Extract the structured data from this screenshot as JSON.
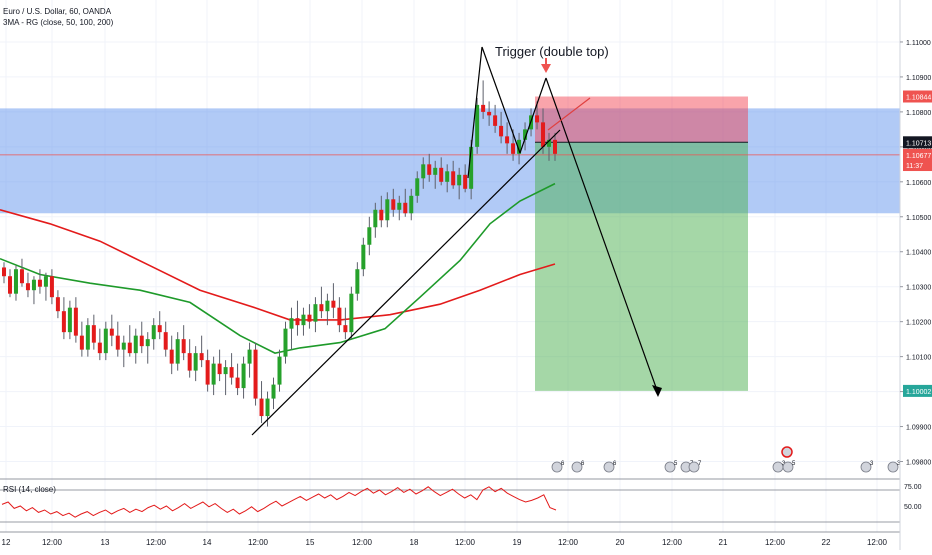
{
  "chart_data": {
    "type": "candlestick",
    "title": "Euro / U.S. Dollar, 60, OANDA",
    "indicator": "3MA - RG (close, 50, 100, 200)",
    "ylim": [
      1.0975,
      1.1112
    ],
    "y_ticks": [
      "1.11000",
      "1.10900",
      "1.10800",
      "1.10700",
      "1.10600",
      "1.10500",
      "1.10400",
      "1.10300",
      "1.10200",
      "1.10100",
      "1.10000",
      "1.09900",
      "1.09800"
    ],
    "x_ticks": [
      "12",
      "12:00",
      "13",
      "12:00",
      "14",
      "12:00",
      "15",
      "12:00",
      "18",
      "12:00",
      "19",
      "12:00",
      "20",
      "12:00",
      "21",
      "12:00",
      "22",
      "12:00"
    ],
    "price_labels": [
      {
        "label": "1.10844",
        "value": 1.10844,
        "color": "#ef5350"
      },
      {
        "label": "1.10713",
        "value": 1.10713,
        "color": "#131722"
      },
      {
        "label": "1.10677",
        "value": 1.10677,
        "color": "#ef5350"
      },
      {
        "label": "11:37",
        "value": 1.10648,
        "color": "#ef5350"
      },
      {
        "label": "1.10002",
        "value": 1.10002,
        "color": "#26a69a"
      }
    ],
    "zone": {
      "low": 1.1051,
      "high": 1.1081
    },
    "position": {
      "entry": 1.10713,
      "stop": 1.10844,
      "target": 1.10002
    },
    "annotation": "Trigger (double top)",
    "ma_green": [
      [
        0,
        1.1038
      ],
      [
        40,
        1.10335
      ],
      [
        90,
        1.1031
      ],
      [
        140,
        1.1029
      ],
      [
        190,
        1.10255
      ],
      [
        240,
        1.1016
      ],
      [
        275,
        1.1011
      ],
      [
        300,
        1.10125
      ],
      [
        340,
        1.1014
      ],
      [
        385,
        1.1018
      ],
      [
        420,
        1.1027
      ],
      [
        460,
        1.10375
      ],
      [
        490,
        1.1048
      ],
      [
        520,
        1.10545
      ],
      [
        555,
        1.10595
      ]
    ],
    "ma_red": [
      [
        0,
        1.1052
      ],
      [
        50,
        1.1048
      ],
      [
        100,
        1.1043
      ],
      [
        150,
        1.1036
      ],
      [
        200,
        1.1029
      ],
      [
        255,
        1.1024
      ],
      [
        290,
        1.10205
      ],
      [
        340,
        1.10205
      ],
      [
        390,
        1.1022
      ],
      [
        440,
        1.1025
      ],
      [
        480,
        1.1029
      ],
      [
        520,
        1.10335
      ],
      [
        555,
        1.10365
      ]
    ],
    "series": [
      {
        "name": "EURUSD",
        "values": [
          [
            1.10355,
            1.1037,
            1.1031,
            1.1033
          ],
          [
            1.1033,
            1.1035,
            1.1027,
            1.1028
          ],
          [
            1.1028,
            1.1036,
            1.1026,
            1.1035
          ],
          [
            1.1035,
            1.1038,
            1.103,
            1.1031
          ],
          [
            1.1031,
            1.1034,
            1.1027,
            1.1029
          ],
          [
            1.1029,
            1.1033,
            1.1025,
            1.1032
          ],
          [
            1.1032,
            1.1035,
            1.1028,
            1.103
          ],
          [
            1.103,
            1.1034,
            1.1026,
            1.1033
          ],
          [
            1.1033,
            1.1035,
            1.1025,
            1.1027
          ],
          [
            1.1027,
            1.1029,
            1.1021,
            1.1023
          ],
          [
            1.1023,
            1.1027,
            1.1015,
            1.1017
          ],
          [
            1.1017,
            1.1026,
            1.1015,
            1.1024
          ],
          [
            1.1024,
            1.1027,
            1.1014,
            1.1016
          ],
          [
            1.1016,
            1.102,
            1.101,
            1.1012
          ],
          [
            1.1012,
            1.1021,
            1.101,
            1.1019
          ],
          [
            1.1019,
            1.1022,
            1.1012,
            1.1014
          ],
          [
            1.1014,
            1.1018,
            1.1009,
            1.1011
          ],
          [
            1.1011,
            1.102,
            1.1009,
            1.1018
          ],
          [
            1.1018,
            1.1022,
            1.1013,
            1.1016
          ],
          [
            1.1016,
            1.102,
            1.101,
            1.1012
          ],
          [
            1.1012,
            1.1016,
            1.1007,
            1.1014
          ],
          [
            1.1014,
            1.1019,
            1.101,
            1.1011
          ],
          [
            1.1011,
            1.1018,
            1.1008,
            1.1016
          ],
          [
            1.1016,
            1.102,
            1.1011,
            1.1013
          ],
          [
            1.1013,
            1.1017,
            1.1008,
            1.1015
          ],
          [
            1.1015,
            1.1021,
            1.1012,
            1.1019
          ],
          [
            1.1019,
            1.1023,
            1.1015,
            1.1017
          ],
          [
            1.1017,
            1.102,
            1.101,
            1.1012
          ],
          [
            1.1012,
            1.1016,
            1.1005,
            1.1008
          ],
          [
            1.1008,
            1.1017,
            1.1006,
            1.1015
          ],
          [
            1.1015,
            1.1019,
            1.1009,
            1.1011
          ],
          [
            1.1011,
            1.1015,
            1.1004,
            1.1006
          ],
          [
            1.1006,
            1.1013,
            1.1003,
            1.1011
          ],
          [
            1.1011,
            1.1016,
            1.1007,
            1.1009
          ],
          [
            1.1009,
            1.1012,
            1.1,
            1.1002
          ],
          [
            1.1002,
            1.101,
            1.0999,
            1.1008
          ],
          [
            1.1008,
            1.1012,
            1.1003,
            1.1005
          ],
          [
            1.1005,
            1.1009,
            1.0999,
            1.1007
          ],
          [
            1.1007,
            1.1011,
            1.1002,
            1.1004
          ],
          [
            1.1004,
            1.1008,
            1.0999,
            1.1001
          ],
          [
            1.1001,
            1.101,
            1.0998,
            1.1008
          ],
          [
            1.1008,
            1.1014,
            1.1004,
            1.1012
          ],
          [
            1.1012,
            1.1014,
            1.0996,
            1.0998
          ],
          [
            1.0998,
            1.1003,
            1.0991,
            1.0993
          ],
          [
            1.0993,
            1.1,
            1.099,
            1.0998
          ],
          [
            1.0998,
            1.1004,
            1.0995,
            1.1002
          ],
          [
            1.1002,
            1.1012,
            1.1,
            1.101
          ],
          [
            1.101,
            1.102,
            1.1008,
            1.1018
          ],
          [
            1.1018,
            1.1024,
            1.1012,
            1.1021
          ],
          [
            1.1021,
            1.1026,
            1.1016,
            1.1019
          ],
          [
            1.1019,
            1.1024,
            1.1016,
            1.1022
          ],
          [
            1.1022,
            1.1025,
            1.1018,
            1.102
          ],
          [
            1.102,
            1.1027,
            1.1017,
            1.1025
          ],
          [
            1.1025,
            1.103,
            1.1021,
            1.1023
          ],
          [
            1.1023,
            1.1028,
            1.1019,
            1.1026
          ],
          [
            1.1026,
            1.1031,
            1.1021,
            1.1024
          ],
          [
            1.1024,
            1.1027,
            1.1017,
            1.1019
          ],
          [
            1.1019,
            1.1024,
            1.1015,
            1.1017
          ],
          [
            1.1017,
            1.103,
            1.1015,
            1.1028
          ],
          [
            1.1028,
            1.1037,
            1.1026,
            1.1035
          ],
          [
            1.1035,
            1.1044,
            1.1033,
            1.1042
          ],
          [
            1.1042,
            1.105,
            1.1039,
            1.1047
          ],
          [
            1.1047,
            1.1054,
            1.1044,
            1.1052
          ],
          [
            1.1052,
            1.1056,
            1.1047,
            1.1049
          ],
          [
            1.1049,
            1.1057,
            1.1047,
            1.1055
          ],
          [
            1.1055,
            1.1058,
            1.105,
            1.1052
          ],
          [
            1.1052,
            1.1056,
            1.1049,
            1.1054
          ],
          [
            1.1054,
            1.1058,
            1.105,
            1.1051
          ],
          [
            1.1051,
            1.1058,
            1.1049,
            1.1056
          ],
          [
            1.1056,
            1.1063,
            1.1054,
            1.1061
          ],
          [
            1.1061,
            1.1067,
            1.1058,
            1.1065
          ],
          [
            1.1065,
            1.1068,
            1.106,
            1.1062
          ],
          [
            1.1062,
            1.1066,
            1.1058,
            1.1064
          ],
          [
            1.1064,
            1.1067,
            1.1059,
            1.106
          ],
          [
            1.106,
            1.1065,
            1.1057,
            1.1063
          ],
          [
            1.1063,
            1.1066,
            1.1058,
            1.1059
          ],
          [
            1.1059,
            1.1064,
            1.1055,
            1.1062
          ],
          [
            1.1062,
            1.1065,
            1.1057,
            1.1058
          ],
          [
            1.1058,
            1.1072,
            1.1055,
            1.107
          ],
          [
            1.107,
            1.1084,
            1.1068,
            1.1082
          ],
          [
            1.1082,
            1.1089,
            1.1078,
            1.108
          ],
          [
            1.108,
            1.1083,
            1.1076,
            1.1079
          ],
          [
            1.1079,
            1.1082,
            1.1074,
            1.1076
          ],
          [
            1.1076,
            1.108,
            1.1071,
            1.1073
          ],
          [
            1.1073,
            1.1077,
            1.1068,
            1.1071
          ],
          [
            1.1071,
            1.1075,
            1.1066,
            1.1068
          ],
          [
            1.1068,
            1.1074,
            1.1065,
            1.1072
          ],
          [
            1.1072,
            1.1077,
            1.1069,
            1.1075
          ],
          [
            1.1075,
            1.1081,
            1.1073,
            1.1079
          ],
          [
            1.1079,
            1.1083,
            1.1075,
            1.1077
          ],
          [
            1.1077,
            1.1081,
            1.1068,
            1.107
          ],
          [
            1.107,
            1.1074,
            1.1066,
            1.1072
          ],
          [
            1.1072,
            1.1074,
            1.1066,
            1.1068
          ]
        ]
      }
    ],
    "rsi": {
      "label": "RSI (14, close)",
      "upper": 70,
      "lower": 30,
      "ticks": [
        "75.00",
        "50.00"
      ],
      "values": [
        52,
        55,
        47,
        50,
        44,
        48,
        42,
        45,
        40,
        43,
        38,
        41,
        36,
        40,
        43,
        38,
        42,
        45,
        40,
        44,
        47,
        42,
        46,
        43,
        48,
        51,
        46,
        50,
        44,
        48,
        53,
        47,
        51,
        55,
        49,
        53,
        47,
        42,
        46,
        40,
        44,
        49,
        43,
        47,
        52,
        56,
        50,
        54,
        58,
        62,
        57,
        61,
        65,
        60,
        64,
        58,
        62,
        67,
        63,
        68,
        72,
        66,
        70,
        64,
        68,
        73,
        67,
        71,
        65,
        69,
        74,
        68,
        63,
        67,
        71,
        65,
        60,
        64,
        58,
        70,
        74,
        68,
        72,
        66,
        62,
        58,
        55,
        57,
        60,
        64,
        48,
        45
      ]
    },
    "events": [
      {
        "x": 557,
        "label": "6"
      },
      {
        "x": 577,
        "label": "6"
      },
      {
        "x": 609,
        "label": "6"
      },
      {
        "x": 670,
        "label": "5"
      },
      {
        "x": 686,
        "label": "7"
      },
      {
        "x": 694,
        "label": "7"
      },
      {
        "x": 778,
        "label": "3"
      },
      {
        "x": 788,
        "label": "5"
      },
      {
        "x": 866,
        "label": "3"
      },
      {
        "x": 893,
        "label": "3"
      }
    ]
  }
}
